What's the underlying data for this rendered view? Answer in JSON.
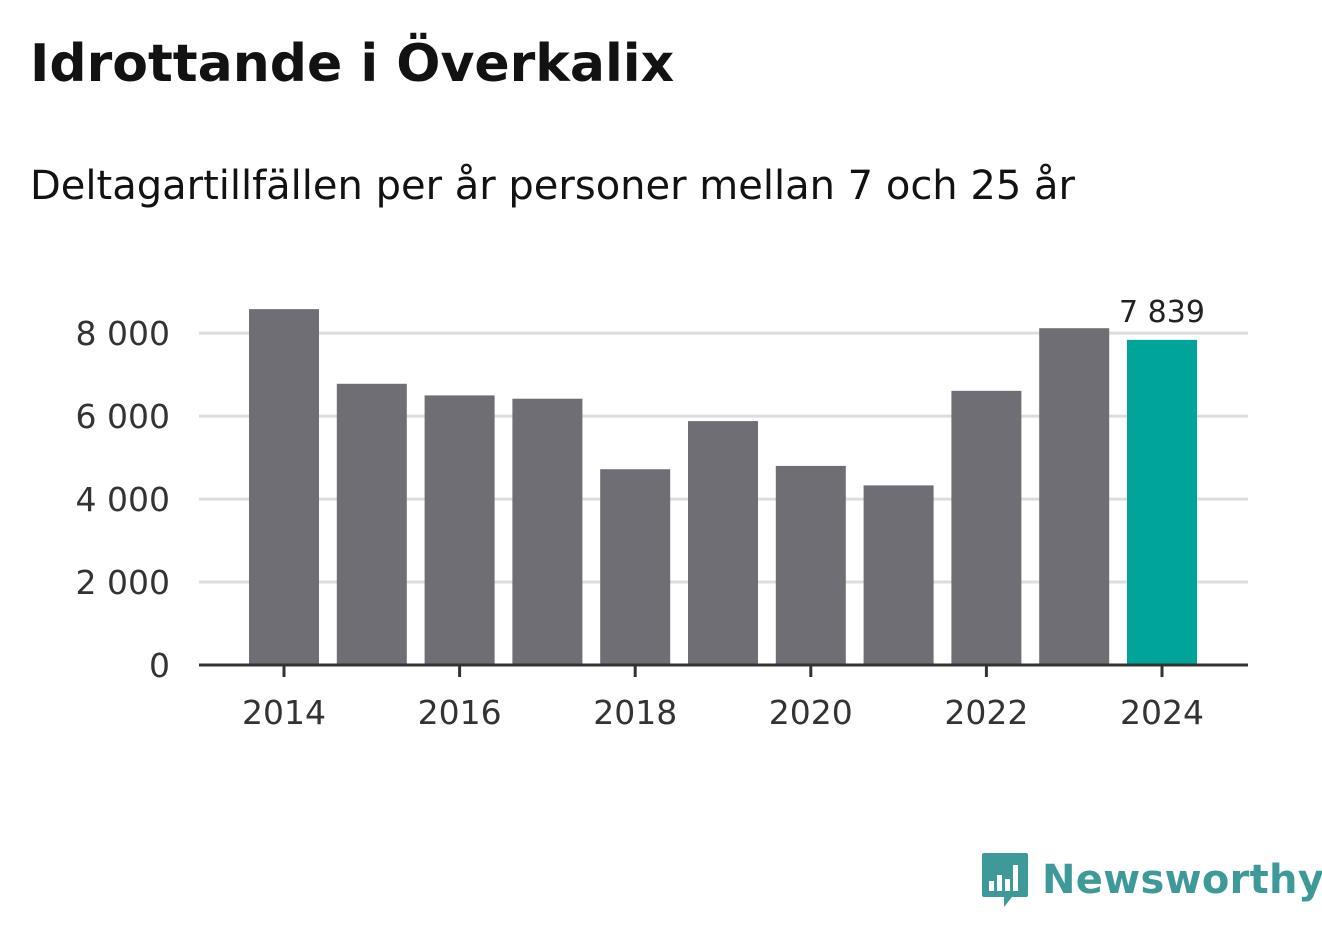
{
  "chart_data": {
    "type": "bar",
    "title": "Idrottande i Överkalix",
    "subtitle": "Deltagartillfällen per år personer mellan 7 och 25 år",
    "categories": [
      "2014",
      "2015",
      "2016",
      "2017",
      "2018",
      "2019",
      "2020",
      "2021",
      "2022",
      "2023",
      "2024"
    ],
    "values": [
      8580,
      6780,
      6500,
      6420,
      4720,
      5880,
      4800,
      4330,
      6610,
      8120,
      7839
    ],
    "x_tick_labels": [
      "2014",
      "2016",
      "2018",
      "2020",
      "2022",
      "2024"
    ],
    "y_ticks": [
      0,
      2000,
      4000,
      6000,
      8000
    ],
    "y_tick_labels": [
      "0",
      "2 000",
      "4 000",
      "6 000",
      "8 000"
    ],
    "ylim": [
      0,
      8800
    ],
    "xlabel": "",
    "ylabel": "",
    "grid": true,
    "highlight_label": "7 839",
    "colors": {
      "bar": "#6f6e74",
      "highlight": "#00a499",
      "grid": "#dddddd",
      "axis": "#333333"
    }
  },
  "branding": {
    "logo_text": "Newsworthy",
    "logo_icon": "newsworthy-chart-bubble-icon",
    "logo_color": "#3e9a98"
  }
}
